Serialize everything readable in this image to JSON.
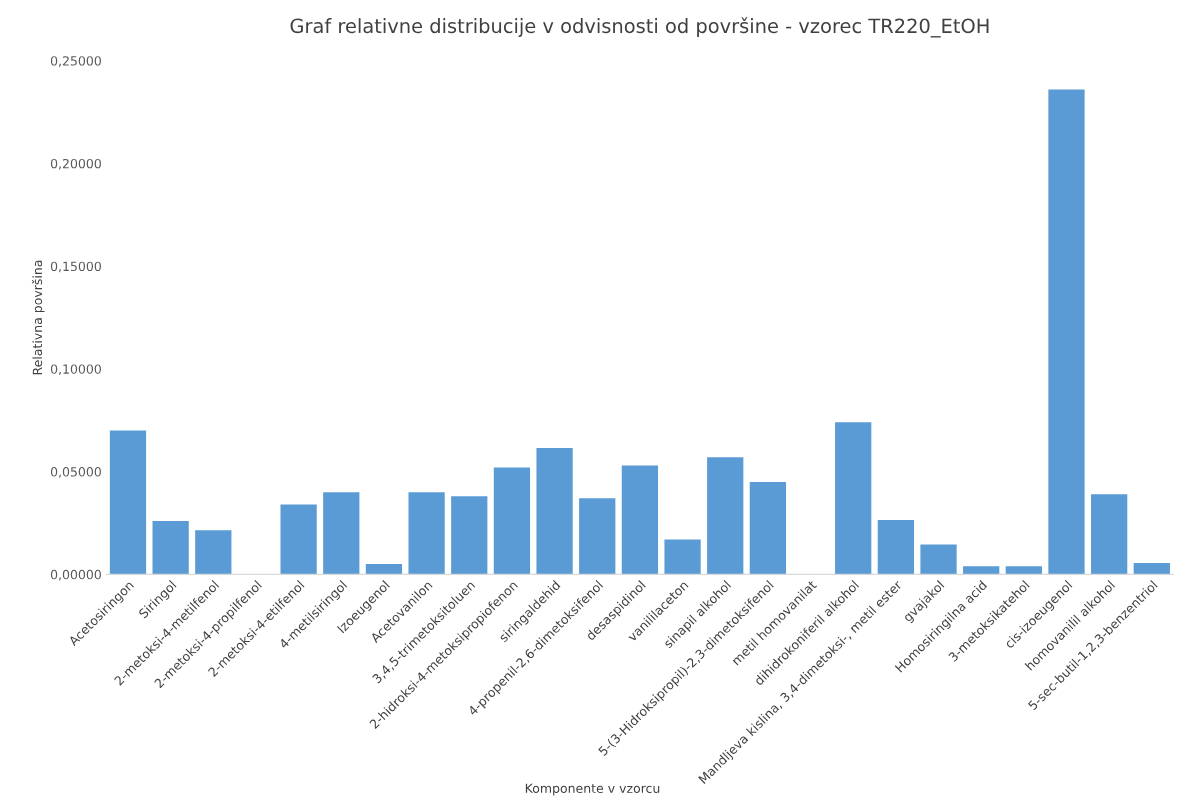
{
  "chart_data": {
    "type": "bar",
    "title": "Graf relativne distribucije v odvisnosti od površine - vzorec TR220_EtOH",
    "xlabel": "Komponente v vzorcu",
    "ylabel": "Relativna površina",
    "categories": [
      "Acetosiringon",
      "Siringol",
      "2-metoksi-4-metilfenol",
      "2-metoksi-4-propilfenol",
      "2-metoksi-4-etilfenol",
      "4-metilsiringol",
      "Izoeugenol",
      "Acetovanilon",
      "3,4,5-trimetoksitoluen",
      "2-hidroksi-4-metoksipropiofenon",
      "siringaldehid",
      "4-propenil-2,6-dimetoksifenol",
      "desaspidinol",
      "vanililaceton",
      "sinapil alkohol",
      "5-(3-Hidroksipropil)-2,3-dimetoksifenol",
      "metil homovanilat",
      "dihidrokoniferil alkohol",
      "Mandljeva kislina, 3,4-dimetoksi-, metil ester",
      "gvajakol",
      "Homosiringilna acid",
      "3-metoksikatehol",
      "cis-izoeugenol",
      "homovanilil alkohol",
      "5-sec-butil-1,2,3-benzentriol"
    ],
    "values": [
      0.07,
      0.026,
      0.0215,
      0,
      0.034,
      0.04,
      0.005,
      0.04,
      0.038,
      0.052,
      0.0615,
      0.037,
      0.053,
      0.017,
      0.057,
      0.045,
      0,
      0.074,
      0.0265,
      0.0145,
      0.004,
      0.004,
      0.236,
      0.039,
      0.0055
    ],
    "color": "#5b9bd5",
    "ylim": [
      0,
      0.25
    ],
    "yticks": [
      {
        "value": 0,
        "label": "0,00000"
      },
      {
        "value": 0.05,
        "label": "0,05000"
      },
      {
        "value": 0.1,
        "label": "0,10000"
      },
      {
        "value": 0.15,
        "label": "0,15000"
      },
      {
        "value": 0.2,
        "label": "0,20000"
      },
      {
        "value": 0.25,
        "label": "0,25000"
      }
    ],
    "grid": false,
    "legend": false
  }
}
